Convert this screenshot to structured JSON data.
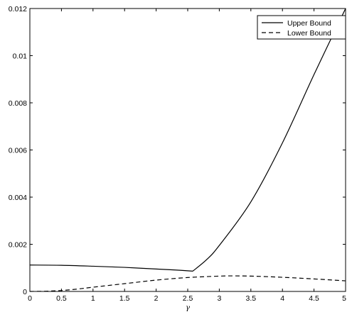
{
  "chart_data": {
    "type": "line",
    "title": "",
    "xlabel": "γ",
    "ylabel": "",
    "xlim": [
      0,
      5
    ],
    "ylim": [
      0,
      0.012
    ],
    "x_ticks": [
      "0",
      "0.5",
      "1",
      "1.5",
      "2",
      "2.5",
      "3",
      "3.5",
      "4",
      "4.5",
      "5"
    ],
    "x_tick_values": [
      0,
      0.5,
      1,
      1.5,
      2,
      2.5,
      3,
      3.5,
      4,
      4.5,
      5
    ],
    "y_ticks": [
      "0",
      "0.002",
      "0.004",
      "0.006",
      "0.008",
      "0.01",
      "0.012"
    ],
    "y_tick_values": [
      0,
      0.002,
      0.004,
      0.006,
      0.008,
      0.01,
      0.012
    ],
    "grid": false,
    "legend_position": "top-right",
    "series": [
      {
        "name": "Upper Bound",
        "line_style": "solid",
        "color": "#000000",
        "x": [
          0,
          0.5,
          1,
          1.5,
          2,
          2.3,
          2.58,
          2.8,
          3,
          3.5,
          4,
          4.5,
          5
        ],
        "y": [
          0.00112,
          0.00111,
          0.00107,
          0.00102,
          0.00095,
          0.00091,
          0.00086,
          0.00135,
          0.00195,
          0.0038,
          0.0063,
          0.0092,
          0.012
        ]
      },
      {
        "name": "Lower Bound",
        "line_style": "dashed",
        "color": "#000000",
        "x": [
          0,
          0.25,
          0.5,
          0.75,
          1,
          1.5,
          2,
          2.5,
          3,
          3.2,
          3.5,
          4,
          4.5,
          5
        ],
        "y": [
          0,
          1e-05,
          4e-05,
          0.0001,
          0.00018,
          0.00033,
          0.00048,
          0.00059,
          0.00065,
          0.00066,
          0.00065,
          0.0006,
          0.00053,
          0.00045
        ]
      }
    ]
  }
}
